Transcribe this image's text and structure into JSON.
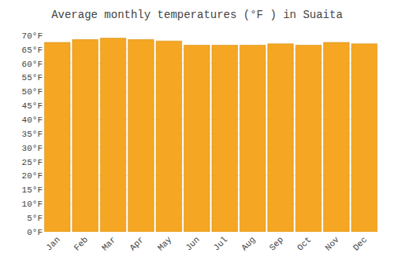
{
  "chart_data": {
    "type": "bar",
    "title": "Average monthly temperatures (°F ) in Suaita",
    "categories": [
      "Jan",
      "Feb",
      "Mar",
      "Apr",
      "May",
      "Jun",
      "Jul",
      "Aug",
      "Sep",
      "Oct",
      "Nov",
      "Dec"
    ],
    "values": [
      67.5,
      68.5,
      69.0,
      68.5,
      68.0,
      66.5,
      66.5,
      66.5,
      67.0,
      66.5,
      67.5,
      67.0
    ],
    "color": "#F5A623",
    "ylim": [
      0,
      70
    ],
    "yticks": [
      {
        "value": 0,
        "label": "0°F"
      },
      {
        "value": 5,
        "label": "5°F"
      },
      {
        "value": 10,
        "label": "10°F"
      },
      {
        "value": 15,
        "label": "15°F"
      },
      {
        "value": 20,
        "label": "20°F"
      },
      {
        "value": 25,
        "label": "25°F"
      },
      {
        "value": 30,
        "label": "30°F"
      },
      {
        "value": 35,
        "label": "35°F"
      },
      {
        "value": 40,
        "label": "40°F"
      },
      {
        "value": 45,
        "label": "45°F"
      },
      {
        "value": 50,
        "label": "50°F"
      },
      {
        "value": 55,
        "label": "55°F"
      },
      {
        "value": 60,
        "label": "60°F"
      },
      {
        "value": 65,
        "label": "65°F"
      },
      {
        "value": 70,
        "label": "70°F"
      }
    ],
    "grid": true
  }
}
